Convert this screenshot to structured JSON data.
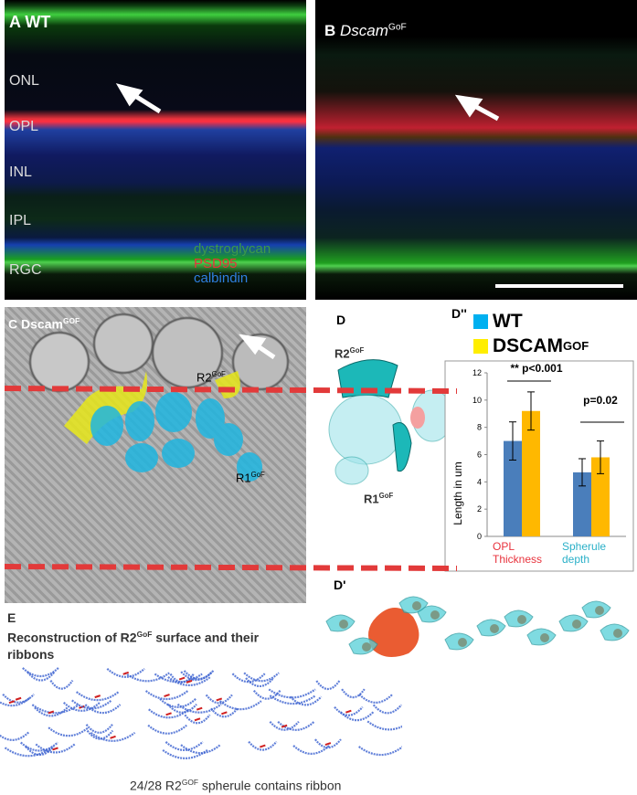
{
  "panels": {
    "a": {
      "letter": "A",
      "title": "WT",
      "layers": [
        "ONL",
        "OPL",
        "INL",
        "IPL",
        "RGC"
      ],
      "stains": [
        {
          "text": "dystroglycan",
          "color": "#3c9a48"
        },
        {
          "text": "PSD95",
          "color": "#e8323c"
        },
        {
          "text": "calbindin",
          "color": "#2f7fe0"
        }
      ]
    },
    "b": {
      "letter": "B",
      "name": "Dscam",
      "sup": "GoF"
    },
    "c": {
      "letter": "C",
      "name": "Dscam",
      "sup": "GOF",
      "cells": [
        {
          "name": "R2",
          "sup": "GoF"
        },
        {
          "name": "R1",
          "sup": "GoF"
        }
      ]
    },
    "d": {
      "letter": "D",
      "cells": [
        {
          "name": "R2",
          "sup": "GoF"
        },
        {
          "name": "R1",
          "sup": "GoF"
        }
      ]
    },
    "d_prime": {
      "letter": "D'"
    },
    "e": {
      "letter": "E",
      "title": "Reconstruction of R2",
      "title_sup": "GoF",
      "title_rest": " surface and their ribbons",
      "caption": "24/28 R2",
      "caption_sup": "GOF",
      "caption_rest": " spherule contains ribbon"
    }
  },
  "chart_data": {
    "type": "bar",
    "letter": "D''",
    "ylabel": "Length in um",
    "categories": [
      "OPL Thickness",
      "Spherule depth"
    ],
    "category_colors": [
      "#e8323c",
      "#2ab0c8"
    ],
    "series": [
      {
        "name": "WT",
        "color": "#4a7ebb",
        "legend_color": "#00b0f0",
        "values": [
          7.0,
          4.7
        ],
        "errors": [
          1.4,
          1.0
        ]
      },
      {
        "name": "DSCAM",
        "name_sup": "GOF",
        "color": "#ffb800",
        "legend_color": "#ffee00",
        "values": [
          9.2,
          5.8
        ],
        "errors": [
          1.4,
          1.2
        ]
      }
    ],
    "annotations": [
      "** p<0.001",
      "p=0.02"
    ],
    "ylim": [
      0,
      12
    ],
    "yticks": [
      0,
      2,
      4,
      6,
      8,
      10,
      12
    ],
    "grid": false
  }
}
